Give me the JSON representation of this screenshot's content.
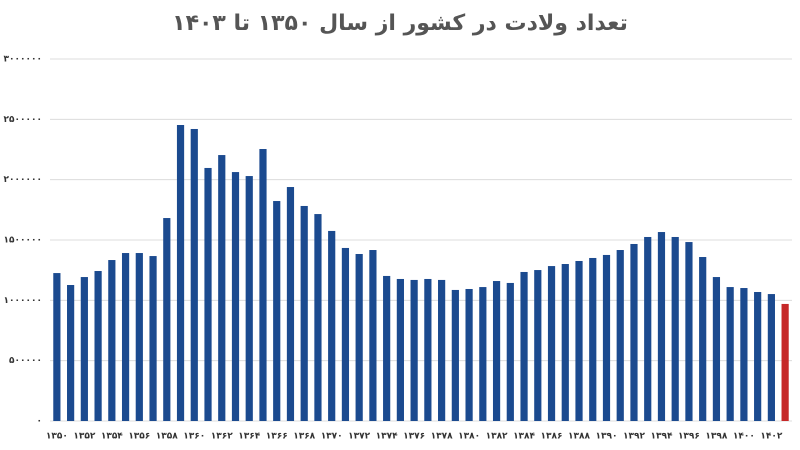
{
  "chart_data": {
    "type": "bar",
    "title": "تعداد ولادت در کشور از سال ۱۳۵۰ تا ۱۴۰۳",
    "categories": [
      "۱۳۵۰",
      null,
      "۱۳۵۲",
      null,
      "۱۳۵۴",
      null,
      "۱۳۵۶",
      null,
      "۱۳۵۸",
      null,
      "۱۳۶۰",
      null,
      "۱۳۶۲",
      null,
      "۱۳۶۴",
      null,
      "۱۳۶۶",
      null,
      "۱۳۶۸",
      null,
      "۱۳۷۰",
      null,
      "۱۳۷۲",
      null,
      "۱۳۷۴",
      null,
      "۱۳۷۶",
      null,
      "۱۳۷۸",
      null,
      "۱۳۸۰",
      null,
      "۱۳۸۲",
      null,
      "۱۳۸۴",
      null,
      "۱۳۸۶",
      null,
      "۱۳۸۸",
      null,
      "۱۳۹۰",
      null,
      "۱۳۹۲",
      null,
      "۱۳۹۴",
      null,
      "۱۳۹۶",
      null,
      "۱۳۹۸",
      null,
      "۱۴۰۰",
      null,
      "۱۴۰۲",
      null
    ],
    "values": [
      1226000,
      1127000,
      1193000,
      1243000,
      1334000,
      1392000,
      1392000,
      1367000,
      1682000,
      2453000,
      2420000,
      2097000,
      2204000,
      2063000,
      2030000,
      2254000,
      1823000,
      1939000,
      1782000,
      1715000,
      1575000,
      1434000,
      1384000,
      1417000,
      1202000,
      1177000,
      1169000,
      1177000,
      1169000,
      1086000,
      1094000,
      1110000,
      1160000,
      1144000,
      1235000,
      1251000,
      1284000,
      1301000,
      1326000,
      1351000,
      1376000,
      1417000,
      1467000,
      1525000,
      1566000,
      1525000,
      1483000,
      1359000,
      1193000,
      1110000,
      1102000,
      1069000,
      1052000,
      970000
    ],
    "colors": [
      "#1b4a8f",
      "#1b4a8f",
      "#1b4a8f",
      "#1b4a8f",
      "#1b4a8f",
      "#1b4a8f",
      "#1b4a8f",
      "#1b4a8f",
      "#1b4a8f",
      "#1b4a8f",
      "#1b4a8f",
      "#1b4a8f",
      "#1b4a8f",
      "#1b4a8f",
      "#1b4a8f",
      "#1b4a8f",
      "#1b4a8f",
      "#1b4a8f",
      "#1b4a8f",
      "#1b4a8f",
      "#1b4a8f",
      "#1b4a8f",
      "#1b4a8f",
      "#1b4a8f",
      "#1b4a8f",
      "#1b4a8f",
      "#1b4a8f",
      "#1b4a8f",
      "#1b4a8f",
      "#1b4a8f",
      "#1b4a8f",
      "#1b4a8f",
      "#1b4a8f",
      "#1b4a8f",
      "#1b4a8f",
      "#1b4a8f",
      "#1b4a8f",
      "#1b4a8f",
      "#1b4a8f",
      "#1b4a8f",
      "#1b4a8f",
      "#1b4a8f",
      "#1b4a8f",
      "#1b4a8f",
      "#1b4a8f",
      "#1b4a8f",
      "#1b4a8f",
      "#1b4a8f",
      "#1b4a8f",
      "#1b4a8f",
      "#1b4a8f",
      "#1b4a8f",
      "#1b4a8f",
      "#c62828"
    ],
    "ylim": [
      0,
      3000000
    ],
    "yticks": [
      {
        "value": 0,
        "label": "۰"
      },
      {
        "value": 500000,
        "label": "۵۰۰۰۰۰"
      },
      {
        "value": 1000000,
        "label": "۱۰۰۰۰۰۰"
      },
      {
        "value": 1500000,
        "label": "۱۵۰۰۰۰۰"
      },
      {
        "value": 2000000,
        "label": "۲۰۰۰۰۰۰"
      },
      {
        "value": 2500000,
        "label": "۲۵۰۰۰۰۰"
      },
      {
        "value": 3000000,
        "label": "۳۰۰۰۰۰۰"
      }
    ],
    "grid": true
  }
}
